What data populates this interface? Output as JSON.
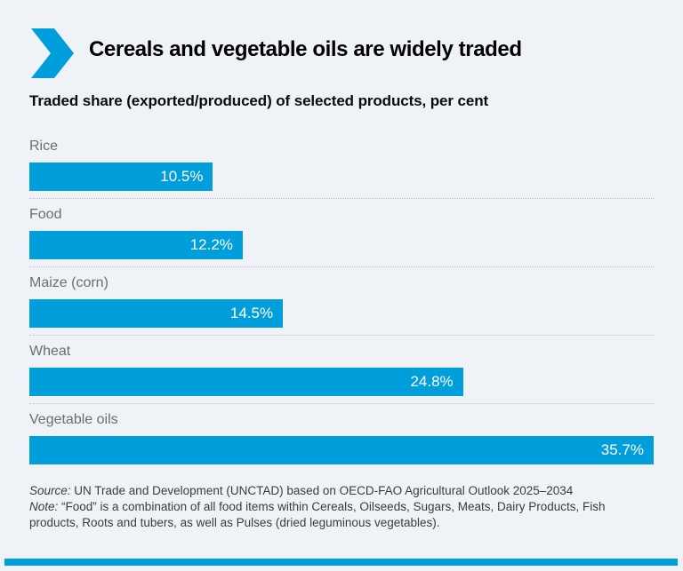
{
  "header": {
    "title": "Cereals and vegetable oils are widely traded",
    "subtitle": "Traded share (exported/produced) of selected products, per cent"
  },
  "chart_data": {
    "type": "bar",
    "orientation": "horizontal",
    "title": "Cereals and vegetable oils are widely traded",
    "subtitle": "Traded share (exported/produced) of selected products, per cent",
    "unit": "per cent",
    "categories": [
      "Rice",
      "Food",
      "Maize (corn)",
      "Wheat",
      "Vegetable oils"
    ],
    "values": [
      10.5,
      12.2,
      14.5,
      24.8,
      35.7
    ],
    "value_labels": [
      "10.5%",
      "12.2%",
      "14.5%",
      "24.8%",
      "35.7%"
    ],
    "xlim": [
      0,
      35.7
    ],
    "grid": false,
    "legend": false,
    "value_label_position": "inside-right",
    "bar_color": "#009edb"
  },
  "footer": {
    "source_label": "Source:",
    "source_text": " UN Trade and Development (UNCTAD) based on OECD-FAO Agricultural Outlook 2025–2034",
    "note_label": "Note:",
    "note_text": " “Food” is a combination of all food items within Cereals, Oilseeds, Sugars, Meats, Dairy Products, Fish products, Roots and tubers, as well as Pulses (dried leguminous vegetables)."
  },
  "icons": {
    "chevron": "chevron-right-icon"
  },
  "colors": {
    "accent": "#009edb",
    "background": "#eff3f8",
    "category_label": "#6d6d6d",
    "value_label": "#ffffff",
    "footnote_text": "#3b3b3b",
    "separator": "#bfbfbf"
  }
}
